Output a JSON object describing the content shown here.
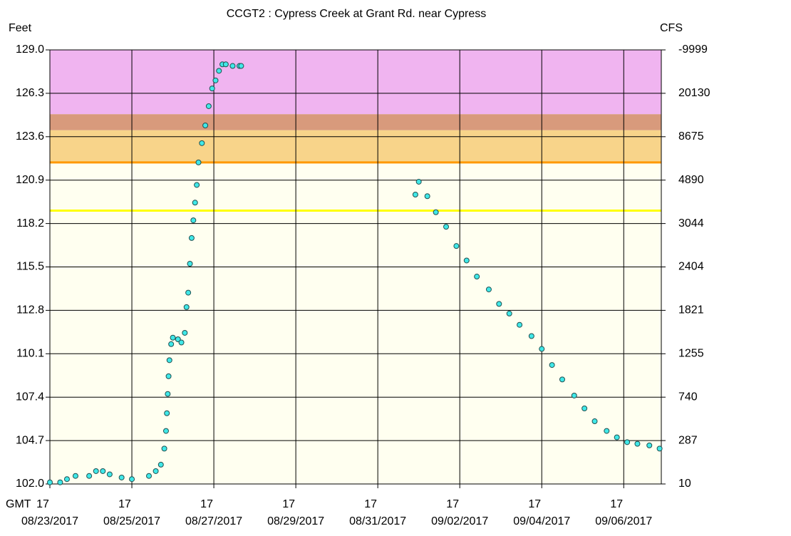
{
  "chart_data": {
    "type": "scatter",
    "title": "CCGT2  :  Cypress Creek at Grant Rd. near Cypress",
    "y_label": "Feet",
    "y2_label": "CFS",
    "x_label": "GMT",
    "plot_background": "#fffff0",
    "grid": true,
    "xlim": [
      "2017-08-23T17:00",
      "2017-09-07T15:00"
    ],
    "xticks": [
      {
        "value": "2017-08-23T17:00",
        "label": "17",
        "date": "08/23/2017"
      },
      {
        "value": "2017-08-25T17:00",
        "label": "17",
        "date": "08/25/2017"
      },
      {
        "value": "2017-08-27T17:00",
        "label": "17",
        "date": "08/27/2017"
      },
      {
        "value": "2017-08-29T17:00",
        "label": "17",
        "date": "08/29/2017"
      },
      {
        "value": "2017-08-31T17:00",
        "label": "17",
        "date": "08/31/2017"
      },
      {
        "value": "2017-09-02T17:00",
        "label": "17",
        "date": "09/02/2017"
      },
      {
        "value": "2017-09-04T17:00",
        "label": "17",
        "date": "09/04/2017"
      },
      {
        "value": "2017-09-06T17:00",
        "label": "17",
        "date": "09/06/2017"
      }
    ],
    "ylim": [
      102,
      129
    ],
    "yticks": [
      {
        "value": 102,
        "label": "102.0"
      },
      {
        "value": 104.7,
        "label": "104.7"
      },
      {
        "value": 107.4,
        "label": "107.4"
      },
      {
        "value": 110.1,
        "label": "110.1"
      },
      {
        "value": 112.8,
        "label": "112.8"
      },
      {
        "value": 115.5,
        "label": "115.5"
      },
      {
        "value": 118.2,
        "label": "118.2"
      },
      {
        "value": 120.9,
        "label": "120.9"
      },
      {
        "value": 123.6,
        "label": "123.6"
      },
      {
        "value": 126.3,
        "label": "126.3"
      },
      {
        "value": 129,
        "label": "129.0"
      }
    ],
    "y2ticks": [
      10,
      287,
      740,
      1255,
      1821,
      2404,
      3044,
      4890,
      8675,
      20130,
      -9999
    ],
    "bands": [
      {
        "from": 125,
        "to": 129,
        "color": "#f0b4f0"
      },
      {
        "from": 124,
        "to": 125,
        "color": "#d89a7c"
      },
      {
        "from": 122,
        "to": 124,
        "color": "#f8d48a"
      }
    ],
    "thresholds": [
      {
        "value": 122,
        "color": "#ff9900"
      },
      {
        "value": 119,
        "color": "#ffff00"
      }
    ],
    "series": [
      {
        "color": "#40e8e8",
        "x": [
          "2017-08-23T17:00",
          "2017-08-23T23:00",
          "2017-08-24T03:00",
          "2017-08-24T08:00",
          "2017-08-24T16:00",
          "2017-08-24T20:00",
          "2017-08-25T00:00",
          "2017-08-25T04:00",
          "2017-08-25T11:00",
          "2017-08-25T17:00",
          "2017-08-26T03:00",
          "2017-08-26T07:00",
          "2017-08-26T10:00",
          "2017-08-26T12:00",
          "2017-08-26T13:00",
          "2017-08-26T13:30",
          "2017-08-26T14:00",
          "2017-08-26T14:30",
          "2017-08-26T15:00",
          "2017-08-26T16:00",
          "2017-08-26T17:00",
          "2017-08-26T20:00",
          "2017-08-26T22:00",
          "2017-08-27T00:00",
          "2017-08-27T01:00",
          "2017-08-27T02:00",
          "2017-08-27T03:00",
          "2017-08-27T04:00",
          "2017-08-27T05:00",
          "2017-08-27T06:00",
          "2017-08-27T07:00",
          "2017-08-27T08:00",
          "2017-08-27T10:00",
          "2017-08-27T12:00",
          "2017-08-27T14:00",
          "2017-08-27T16:00",
          "2017-08-27T18:00",
          "2017-08-27T20:00",
          "2017-08-27T22:00",
          "2017-08-28T00:00",
          "2017-08-28T04:00",
          "2017-08-28T08:00",
          "2017-08-28T09:00",
          "2017-08-30T00:00",
          "2017-09-01T15:00",
          "2017-09-01T17:00",
          "2017-09-01T22:00",
          "2017-09-02T03:00",
          "2017-09-02T09:00",
          "2017-09-02T15:00",
          "2017-09-02T21:00",
          "2017-09-03T03:00",
          "2017-09-03T10:00",
          "2017-09-03T16:00",
          "2017-09-03T22:00",
          "2017-09-04T04:00",
          "2017-09-04T11:00",
          "2017-09-04T17:00",
          "2017-09-04T23:00",
          "2017-09-05T05:00",
          "2017-09-05T12:00",
          "2017-09-05T18:00",
          "2017-09-06T00:00",
          "2017-09-06T07:00",
          "2017-09-06T13:00",
          "2017-09-06T19:00",
          "2017-09-07T01:00",
          "2017-09-07T08:00",
          "2017-09-07T14:00"
        ],
        "values": [
          102.1,
          102.1,
          102.3,
          102.5,
          102.5,
          102.8,
          102.8,
          102.6,
          102.4,
          102.3,
          102.5,
          102.8,
          103.2,
          104.2,
          105.3,
          106.4,
          107.6,
          108.7,
          109.7,
          110.7,
          111.1,
          111.0,
          110.8,
          111.4,
          113.0,
          113.9,
          115.7,
          117.3,
          118.4,
          119.5,
          120.6,
          122.0,
          123.2,
          124.3,
          125.5,
          126.6,
          127.1,
          127.7,
          128.1,
          128.1,
          128.0,
          128.0,
          128.0,
          null,
          120.0,
          120.8,
          119.9,
          118.9,
          118.0,
          116.8,
          115.9,
          114.9,
          114.1,
          113.2,
          112.6,
          111.9,
          111.2,
          110.4,
          109.4,
          108.5,
          107.5,
          106.7,
          105.9,
          105.3,
          104.9,
          104.6,
          104.5,
          104.4,
          104.2
        ]
      }
    ]
  }
}
